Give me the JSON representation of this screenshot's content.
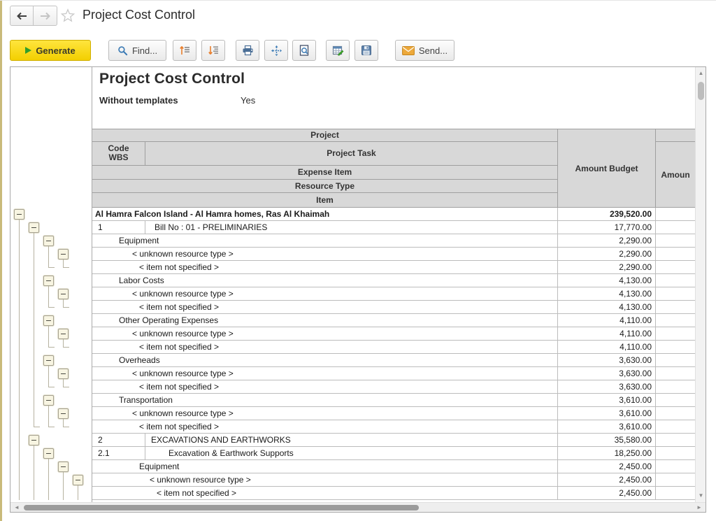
{
  "window": {
    "title": "Project Cost Control"
  },
  "toolbar": {
    "generate_label": "Generate",
    "find_label": "Find...",
    "send_label": "Send..."
  },
  "report": {
    "title": "Project Cost Control",
    "param_label": "Without templates",
    "param_value": "Yes"
  },
  "table": {
    "header": {
      "project": "Project",
      "code_wbs": "Code\nWBS",
      "project_task": "Project Task",
      "expense_item": "Expense Item",
      "resource_type": "Resource Type",
      "item": "Item",
      "amount_budget": "Amount Budget",
      "amount_2": "Amoun"
    },
    "rows": [
      {
        "type": "project",
        "label": "Al Hamra Falcon Island - Al Hamra homes, Ras Al Khaimah",
        "amount": "239,520.00",
        "indent": 4,
        "tree": {
          "box": 0,
          "lines": [],
          "corners": []
        }
      },
      {
        "type": "task",
        "code": "1",
        "label": "Bill No : 01 - PRELIMINARIES",
        "amount": "17,770.00",
        "indent": 13,
        "tree": {
          "box": 1,
          "lines": [
            0
          ],
          "corners": []
        }
      },
      {
        "type": "group",
        "label": "Equipment",
        "amount": "2,290.00",
        "indent": 38,
        "tree": {
          "box": 2,
          "lines": [
            0,
            1
          ],
          "corners": []
        }
      },
      {
        "type": "group",
        "label": "< unknown resource type >",
        "amount": "2,290.00",
        "indent": 57,
        "tree": {
          "box": 3,
          "lines": [
            0,
            1,
            2
          ],
          "corners": []
        }
      },
      {
        "type": "group",
        "label": "< item not specified >",
        "amount": "2,290.00",
        "indent": 67,
        "tree": {
          "box": null,
          "lines": [
            0,
            1
          ],
          "corners": [
            2,
            3
          ]
        }
      },
      {
        "type": "group",
        "label": "Labor Costs",
        "amount": "4,130.00",
        "indent": 38,
        "tree": {
          "box": 2,
          "lines": [
            0,
            1
          ],
          "corners": []
        }
      },
      {
        "type": "group",
        "label": "< unknown resource type >",
        "amount": "4,130.00",
        "indent": 57,
        "tree": {
          "box": 3,
          "lines": [
            0,
            1,
            2
          ],
          "corners": []
        }
      },
      {
        "type": "group",
        "label": "< item not specified >",
        "amount": "4,130.00",
        "indent": 67,
        "tree": {
          "box": null,
          "lines": [
            0,
            1
          ],
          "corners": [
            2,
            3
          ]
        }
      },
      {
        "type": "group",
        "label": "Other Operating Expenses",
        "amount": "4,110.00",
        "indent": 38,
        "tree": {
          "box": 2,
          "lines": [
            0,
            1
          ],
          "corners": []
        }
      },
      {
        "type": "group",
        "label": "< unknown resource type >",
        "amount": "4,110.00",
        "indent": 57,
        "tree": {
          "box": 3,
          "lines": [
            0,
            1,
            2
          ],
          "corners": []
        }
      },
      {
        "type": "group",
        "label": "< item not specified >",
        "amount": "4,110.00",
        "indent": 67,
        "tree": {
          "box": null,
          "lines": [
            0,
            1
          ],
          "corners": [
            2,
            3
          ]
        }
      },
      {
        "type": "group",
        "label": "Overheads",
        "amount": "3,630.00",
        "indent": 38,
        "tree": {
          "box": 2,
          "lines": [
            0,
            1
          ],
          "corners": []
        }
      },
      {
        "type": "group",
        "label": "< unknown resource type >",
        "amount": "3,630.00",
        "indent": 57,
        "tree": {
          "box": 3,
          "lines": [
            0,
            1,
            2
          ],
          "corners": []
        }
      },
      {
        "type": "group",
        "label": "< item not specified >",
        "amount": "3,630.00",
        "indent": 67,
        "tree": {
          "box": null,
          "lines": [
            0,
            1
          ],
          "corners": [
            2,
            3
          ]
        }
      },
      {
        "type": "group",
        "label": "Transportation",
        "amount": "3,610.00",
        "indent": 38,
        "tree": {
          "box": 2,
          "lines": [
            0,
            1
          ],
          "corners": []
        }
      },
      {
        "type": "group",
        "label": "< unknown resource type >",
        "amount": "3,610.00",
        "indent": 57,
        "tree": {
          "box": 3,
          "lines": [
            0,
            1,
            2
          ],
          "corners": []
        }
      },
      {
        "type": "group",
        "label": "< item not specified >",
        "amount": "3,610.00",
        "indent": 67,
        "tree": {
          "box": null,
          "lines": [
            0
          ],
          "corners": [
            1,
            2,
            3
          ]
        }
      },
      {
        "type": "task",
        "code": "2",
        "label": "EXCAVATIONS AND EARTHWORKS",
        "amount": "35,580.00",
        "indent": 8,
        "tree": {
          "box": 1,
          "lines": [
            0
          ],
          "corners": []
        }
      },
      {
        "type": "task",
        "code": "2.1",
        "label": "Excavation & Earthwork Supports",
        "amount": "18,250.00",
        "indent": 33,
        "tree": {
          "box": 2,
          "lines": [
            0,
            1
          ],
          "corners": []
        }
      },
      {
        "type": "group",
        "label": "Equipment",
        "amount": "2,450.00",
        "indent": 67,
        "tree": {
          "box": 3,
          "lines": [
            0,
            1,
            2
          ],
          "corners": []
        }
      },
      {
        "type": "group",
        "label": "< unknown resource type >",
        "amount": "2,450.00",
        "indent": 82,
        "tree": {
          "box": 4,
          "lines": [
            0,
            1,
            2,
            3
          ],
          "corners": []
        }
      },
      {
        "type": "group",
        "label": "< item not specified >",
        "amount": "2,450.00",
        "indent": 92,
        "tree": {
          "box": null,
          "lines": [
            0,
            1,
            2,
            3,
            4
          ],
          "corners": []
        }
      }
    ]
  }
}
